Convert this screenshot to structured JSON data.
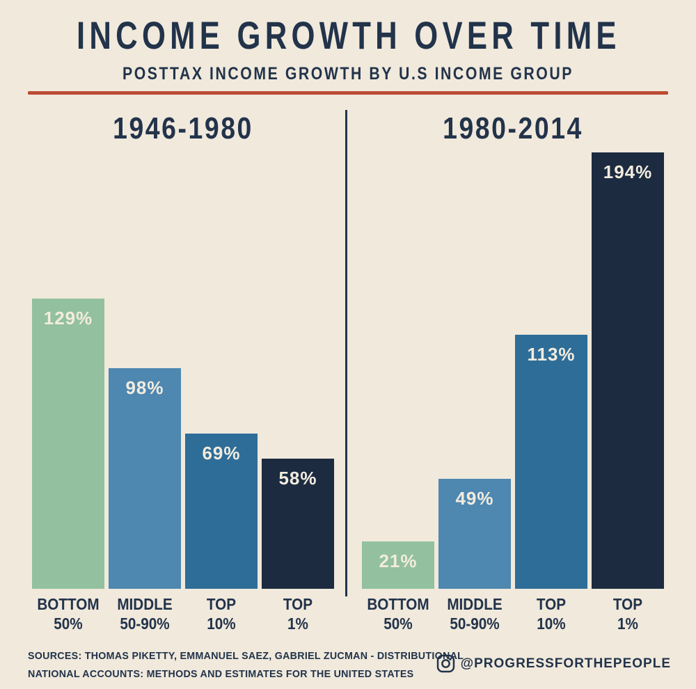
{
  "page": {
    "title": "INCOME GROWTH OVER TIME",
    "subtitle": "POSTTAX INCOME GROWTH BY U.S INCOME GROUP",
    "footer": {
      "sources_line1": "SOURCES: THOMAS PIKETTY, EMMANUEL SAEZ, GABRIEL ZUCMAN - DISTRIBUTIONAL",
      "sources_line2": "NATIONAL ACCOUNTS: METHODS AND ESTIMATES FOR THE UNITED STATES",
      "instagram_handle": "@PROGRESSFORTHEPEOPLE",
      "instagram_icon": "instagram-icon"
    },
    "colors": {
      "background": "#F0E9DC",
      "text_navy": "#22334A",
      "accent_red": "#BC4B35",
      "value_label": "#F2ECDF"
    }
  },
  "chart_data": {
    "type": "bar",
    "title": "INCOME GROWTH OVER TIME",
    "subtitle": "POSTTAX INCOME GROWTH BY U.S INCOME GROUP",
    "unit": "percent",
    "value_suffix": "%",
    "categories": [
      {
        "line1": "BOTTOM",
        "line2": "50%"
      },
      {
        "line1": "MIDDLE",
        "line2": "50-90%"
      },
      {
        "line1": "TOP",
        "line2": "10%"
      },
      {
        "line1": "TOP",
        "line2": "1%"
      }
    ],
    "bar_colors": [
      "#93C09E",
      "#4E87B0",
      "#2E6D98",
      "#1C2B40"
    ],
    "panels": [
      {
        "title": "1946-1980",
        "values": [
          129,
          98,
          69,
          58
        ]
      },
      {
        "title": "1980-2014",
        "values": [
          21,
          49,
          113,
          194
        ]
      }
    ],
    "ylim": [
      0,
      200
    ],
    "grid": false,
    "legend": "none",
    "value_labels_position": "inside-top"
  }
}
